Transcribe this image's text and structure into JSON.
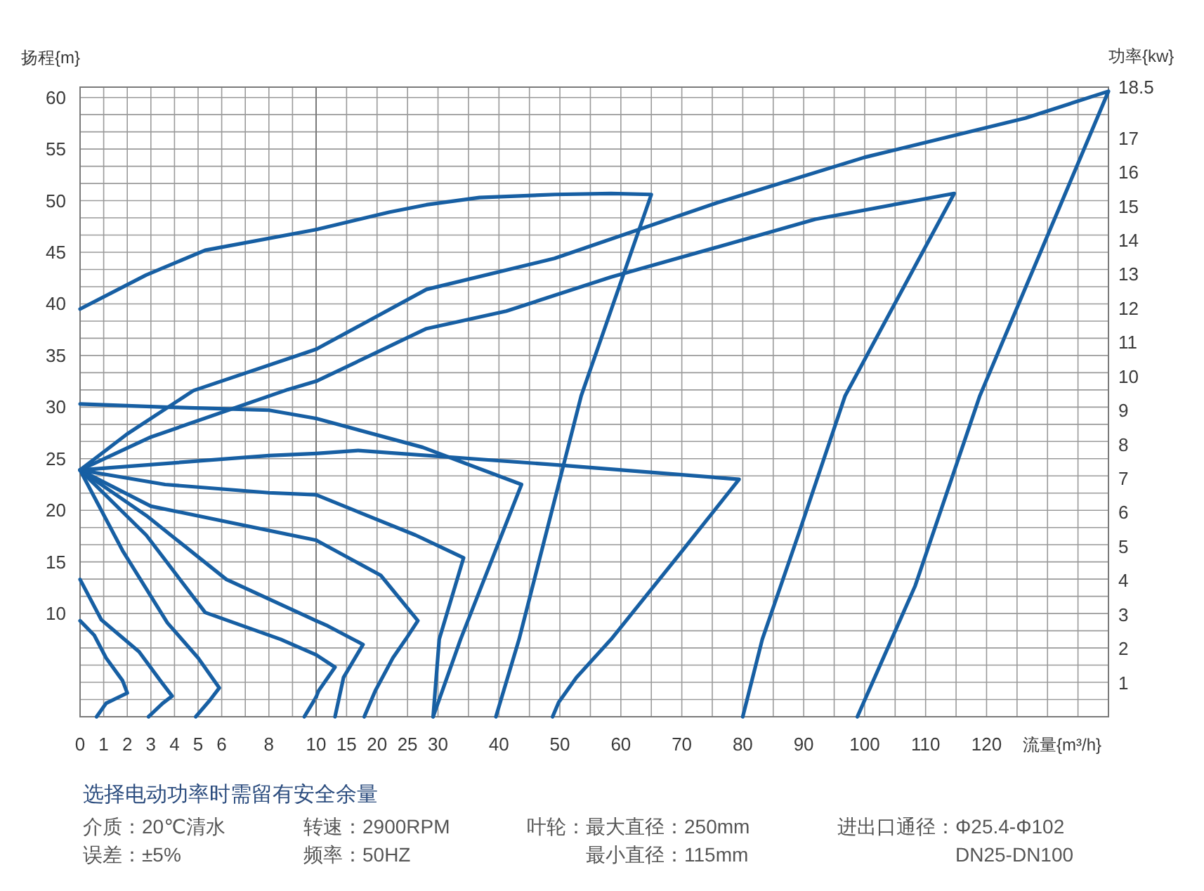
{
  "chart_data": [
    {
      "type": "line",
      "ylabel": "扬程{m}",
      "xlim": [
        0,
        10
      ],
      "xticks": [
        0,
        1,
        2,
        3,
        4,
        5,
        6,
        8,
        10
      ],
      "ylim": [
        0,
        61
      ],
      "yticks": [
        10,
        15,
        20,
        25,
        30,
        35,
        40,
        45,
        50,
        55,
        60
      ],
      "grid": true,
      "series": [
        {
          "color": "#175fa3",
          "x": [
            0,
            0.6,
            1.1,
            1.8,
            2.0,
            1.1,
            0.7
          ],
          "values": [
            9.3,
            7.9,
            5.7,
            3.5,
            2.3,
            1.3,
            0
          ]
        },
        {
          "color": "#175fa3",
          "x": [
            0,
            0.9,
            2.5,
            3.4,
            3.9,
            3.5,
            2.9
          ],
          "values": [
            13.3,
            9.4,
            6.3,
            3.5,
            2.0,
            1.3,
            0
          ]
        },
        {
          "color": "#175fa3",
          "x": [
            0,
            1.8,
            3.7,
            5.0,
            5.9,
            5.5,
            4.9
          ],
          "values": [
            23.9,
            16.1,
            9.1,
            5.7,
            2.8,
            1.6,
            0
          ]
        },
        {
          "color": "#175fa3",
          "x": [
            0,
            2.8,
            5.3,
            8.5,
            10,
            null,
            10,
            9.5
          ],
          "values": [
            23.9,
            17.6,
            10.1,
            7.5,
            6.0,
            null,
            1.9,
            0
          ]
        },
        {
          "color": "#175fa3",
          "x": [
            0,
            2.8,
            6.2,
            10
          ],
          "values": [
            23.9,
            19.5,
            13.3,
            9.3
          ]
        },
        {
          "color": "#175fa3",
          "x": [
            0,
            3.0,
            10
          ],
          "values": [
            23.9,
            20.4,
            17.1
          ]
        },
        {
          "color": "#175fa3",
          "x": [
            0,
            3.6,
            8.0,
            10
          ],
          "values": [
            23.9,
            22.5,
            21.7,
            21.5
          ]
        },
        {
          "color": "#175fa3",
          "x": [
            0,
            3.6,
            8.0,
            10
          ],
          "values": [
            30.3,
            30.0,
            29.7,
            28.9
          ]
        },
        {
          "color": "#175fa3",
          "x": [
            0,
            8.0,
            10
          ],
          "values": [
            23.9,
            25.3,
            25.5
          ]
        },
        {
          "color": "#175fa3",
          "x": [
            0,
            2.8,
            5.3,
            10
          ],
          "values": [
            39.5,
            42.8,
            45.2,
            47.2
          ]
        },
        {
          "color": "#175fa3",
          "x": [
            0,
            3.0,
            8.8,
            10
          ],
          "values": [
            23.9,
            27.1,
            31.7,
            32.5
          ]
        },
        {
          "color": "#175fa3",
          "x": [
            0,
            2.0,
            4.8,
            10
          ],
          "values": [
            23.9,
            27.4,
            31.6,
            35.6
          ]
        }
      ],
      "annotations": [
        "选择电动功率时需留有安全余量",
        "介质：20℃清水",
        "转速：2900RPM",
        "叶轮：最大直径：250mm",
        "进出口通径：Φ25.4-Φ102",
        "误差：±5%",
        "频率：50HZ",
        "最小直径：115mm",
        "DN25-DN100"
      ]
    },
    {
      "type": "line",
      "xlabel": "流量{m³/h}",
      "y2label": "功率{kw}",
      "xlim": [
        10,
        140
      ],
      "xticks": [
        15,
        20,
        25,
        30,
        40,
        50,
        60,
        70,
        80,
        90,
        100,
        110,
        120
      ],
      "ylim": [
        0,
        61
      ],
      "y2lim": [
        0,
        18.5
      ],
      "y2ticks": [
        1,
        2,
        3,
        4,
        5,
        6,
        7,
        8,
        9,
        10,
        11,
        12,
        13,
        14,
        15,
        16,
        17,
        18.5
      ],
      "grid": true,
      "series": [
        {
          "color": "#175fa3",
          "x": [
            10,
            13.1,
            10.4,
            10
          ],
          "values": [
            6.0,
            4.8,
            2.5,
            1.9
          ]
        },
        {
          "color": "#175fa3",
          "x": [
            10,
            11.9,
            17.7,
            14.5,
            13.1
          ],
          "values": [
            9.3,
            8.8,
            7.0,
            3.8,
            0
          ]
        },
        {
          "color": "#175fa3",
          "x": [
            10,
            20.6,
            26.7,
            24.7,
            22.6,
            19.7,
            17.9
          ],
          "values": [
            17.1,
            13.7,
            9.3,
            7.5,
            5.7,
            2.5,
            0
          ]
        },
        {
          "color": "#175fa3",
          "x": [
            10,
            26.3,
            34.2,
            30.2,
            29.2
          ],
          "values": [
            21.5,
            17.6,
            15.4,
            7.5,
            0
          ]
        },
        {
          "color": "#175fa3",
          "x": [
            10,
            27.5,
            43.7,
            33.7,
            29.2
          ],
          "values": [
            28.9,
            26.1,
            22.5,
            7.5,
            0
          ]
        },
        {
          "color": "#175fa3",
          "x": [
            10,
            16.9,
            49.5,
            79.4,
            70.1,
            58.4,
            52.7,
            49.8,
            48.8
          ],
          "values": [
            25.5,
            25.8,
            24.4,
            23.0,
            16.1,
            7.5,
            3.8,
            1.4,
            0
          ]
        },
        {
          "color": "#175fa3",
          "x": [
            10,
            22.1,
            28.1,
            36.8,
            49.2,
            58.4,
            65.0,
            53.5,
            43.3,
            39.5
          ],
          "values": [
            47.2,
            48.9,
            49.6,
            50.3,
            50.6,
            50.7,
            50.6,
            31.1,
            7.5,
            0
          ]
        },
        {
          "color": "#175fa3",
          "x": [
            10,
            28.1,
            41.2,
            58.4,
            75.8,
            91.9,
            114.7,
            96.8,
            89.1,
            83.2,
            80.0
          ],
          "values": [
            32.5,
            37.6,
            39.3,
            42.6,
            45.5,
            48.2,
            50.7,
            31.1,
            17.6,
            7.5,
            0
          ]
        },
        {
          "color": "#175fa3",
          "x": [
            10,
            28.1,
            49.1,
            75.8,
            100,
            126.4,
            140,
            118.9,
            108.3,
            98.8
          ],
          "values": [
            35.6,
            41.4,
            44.4,
            49.8,
            54.2,
            58.0,
            60.6,
            31.1,
            12.7,
            0
          ]
        }
      ]
    }
  ]
}
